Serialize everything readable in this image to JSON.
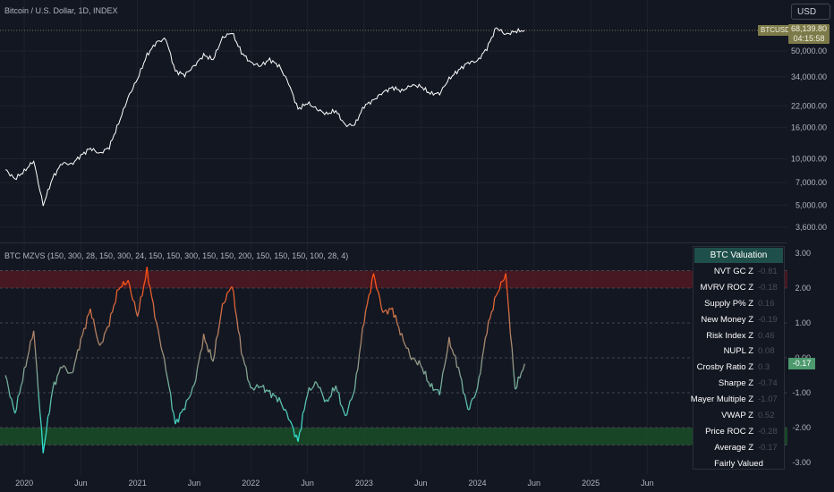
{
  "header": {
    "symbol_title": "Bitcoin / U.S. Dollar, 1D, INDEX",
    "currency_button": "USD"
  },
  "price_panel": {
    "symbol_tag": "BTCUSD",
    "last_price": "68,139.80",
    "countdown": "04:15:58",
    "axis_labels": [
      "50,000.00",
      "34,000.00",
      "22,000.00",
      "16,000.00",
      "10,000.00",
      "7,000.00",
      "5,000.00",
      "3,600.00"
    ],
    "scale": "log"
  },
  "indicator_panel": {
    "title": "BTC MZVS (150, 300, 28, 150, 300, 24, 150, 150, 300, 150, 150, 200, 150, 150, 150, 100, 28, 4)",
    "axis_labels": [
      "3.00",
      "2.00",
      "1.00",
      "0.00",
      "-1.00",
      "-2.00",
      "-3.00"
    ],
    "current_value": "-0.17"
  },
  "valuation_table": {
    "header": "BTC Valuation",
    "rows": [
      {
        "label": "NVT GC Z",
        "value": "-0.81"
      },
      {
        "label": "MVRV ROC Z",
        "value": "-0.18"
      },
      {
        "label": "Supply P% Z",
        "value": "0.16"
      },
      {
        "label": "New Money Z",
        "value": "-0.19"
      },
      {
        "label": "Risk Index Z",
        "value": "0.46"
      },
      {
        "label": "NUPL Z",
        "value": "0.08"
      },
      {
        "label": "Crosby Ratio Z",
        "value": "0.3"
      },
      {
        "label": "Sharpe Z",
        "value": "-0.74"
      },
      {
        "label": "Mayer Multiple Z",
        "value": "-1.07"
      },
      {
        "label": "VWAP Z",
        "value": "0.52"
      },
      {
        "label": "Price ROC Z",
        "value": "-0.28"
      },
      {
        "label": "Average Z",
        "value": "-0.17"
      }
    ],
    "footer": "Fairly Valued"
  },
  "time_axis": [
    "2020",
    "Jun",
    "2021",
    "Jun",
    "2022",
    "Jun",
    "2023",
    "Jun",
    "2024",
    "Jun",
    "2025",
    "Jun"
  ],
  "colors": {
    "background": "#131722",
    "price_line": "#ffffff",
    "overvalued_band": "#5a1a22",
    "undervalued_band": "#1b4d28",
    "hot": "#ff5a1f",
    "neutral": "#b59a7a",
    "cold": "#2fe0d0"
  },
  "chart_data": [
    {
      "type": "line",
      "title": "Bitcoin / U.S. Dollar, 1D, INDEX",
      "scale": "log",
      "x": [
        "2019-11",
        "2019-12",
        "2020-01",
        "2020-02",
        "2020-03",
        "2020-04",
        "2020-05",
        "2020-06",
        "2020-07",
        "2020-08",
        "2020-09",
        "2020-10",
        "2020-11",
        "2020-12",
        "2021-01",
        "2021-02",
        "2021-03",
        "2021-04",
        "2021-05",
        "2021-06",
        "2021-07",
        "2021-08",
        "2021-09",
        "2021-10",
        "2021-11",
        "2021-12",
        "2022-01",
        "2022-02",
        "2022-03",
        "2022-04",
        "2022-05",
        "2022-06",
        "2022-07",
        "2022-08",
        "2022-09",
        "2022-10",
        "2022-11",
        "2022-12",
        "2023-01",
        "2023-02",
        "2023-03",
        "2023-04",
        "2023-05",
        "2023-06",
        "2023-07",
        "2023-08",
        "2023-09",
        "2023-10",
        "2023-11",
        "2023-12",
        "2024-01",
        "2024-02",
        "2024-03",
        "2024-04",
        "2024-05",
        "2024-06"
      ],
      "series": [
        {
          "values": [
            8500,
            7400,
            8300,
            9700,
            5000,
            7500,
            9400,
            9200,
            10500,
            11700,
            10800,
            11900,
            17000,
            25000,
            33000,
            47000,
            57000,
            60000,
            37000,
            35000,
            40000,
            47000,
            44000,
            61000,
            66000,
            49000,
            42000,
            40000,
            44000,
            40000,
            31000,
            21000,
            23000,
            21000,
            19500,
            20500,
            16500,
            16600,
            22000,
            24000,
            27000,
            29000,
            27500,
            30000,
            29500,
            26500,
            26500,
            33000,
            37500,
            42000,
            43000,
            52000,
            71000,
            64000,
            67000,
            68139.8
          ]
        }
      ],
      "ylabel_ticks": [
        3600,
        5000,
        7000,
        10000,
        16000,
        22000,
        34000,
        50000
      ]
    },
    {
      "type": "line",
      "title": "BTC MZVS (150, 300, 28, 150, 300, 24, 150, 150, 300, 150, 150, 200, 150, 150, 150, 100, 28, 4)",
      "x": [
        "2019-11",
        "2019-12",
        "2020-01",
        "2020-02",
        "2020-03",
        "2020-04",
        "2020-05",
        "2020-06",
        "2020-07",
        "2020-08",
        "2020-09",
        "2020-10",
        "2020-11",
        "2020-12",
        "2021-01",
        "2021-02",
        "2021-03",
        "2021-04",
        "2021-05",
        "2021-06",
        "2021-07",
        "2021-08",
        "2021-09",
        "2021-10",
        "2021-11",
        "2021-12",
        "2022-01",
        "2022-02",
        "2022-03",
        "2022-04",
        "2022-05",
        "2022-06",
        "2022-07",
        "2022-08",
        "2022-09",
        "2022-10",
        "2022-11",
        "2022-12",
        "2023-01",
        "2023-02",
        "2023-03",
        "2023-04",
        "2023-05",
        "2023-06",
        "2023-07",
        "2023-08",
        "2023-09",
        "2023-10",
        "2023-11",
        "2023-12",
        "2024-01",
        "2024-02",
        "2024-03",
        "2024-04",
        "2024-05",
        "2024-06"
      ],
      "series": [
        {
          "values": [
            -0.5,
            -1.6,
            -0.4,
            0.8,
            -2.7,
            -0.9,
            -0.2,
            -0.5,
            0.5,
            1.4,
            0.3,
            1.0,
            2.0,
            2.2,
            1.2,
            2.5,
            1.0,
            -0.3,
            -1.9,
            -1.4,
            -0.8,
            0.6,
            -0.1,
            1.5,
            2.1,
            0.2,
            -0.9,
            -0.8,
            -1.0,
            -1.2,
            -1.7,
            -2.4,
            -1.0,
            -0.7,
            -1.3,
            -0.8,
            -1.7,
            -0.9,
            1.1,
            2.4,
            1.3,
            1.4,
            0.6,
            0.0,
            -0.2,
            -0.8,
            -1.0,
            0.5,
            -0.3,
            -1.5,
            -0.9,
            0.8,
            1.8,
            2.4,
            -0.9,
            -0.17
          ]
        }
      ],
      "ylim": [
        -3,
        3
      ],
      "bands": {
        "overvalued": [
          2,
          2.5
        ],
        "undervalued": [
          -2.5,
          -2
        ]
      }
    }
  ]
}
